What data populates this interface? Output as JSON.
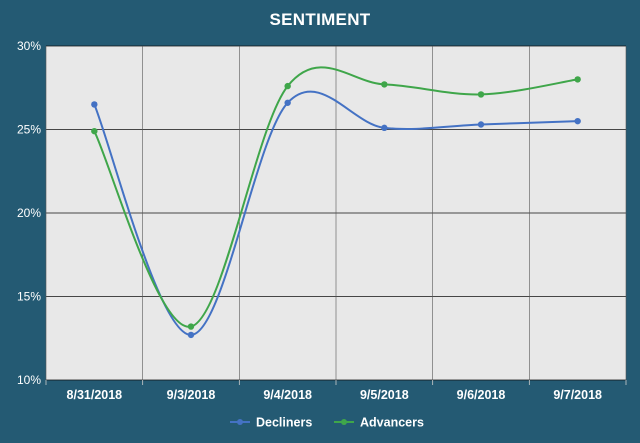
{
  "colors": {
    "background": "#245a73",
    "plot_area": "#e8e8e8",
    "decliners": "#4472c4",
    "advancers": "#3fa64a",
    "grid": "#111111"
  },
  "chart_data": {
    "type": "line",
    "title": "SENTIMENT",
    "categories": [
      "8/31/2018",
      "9/3/2018",
      "9/4/2018",
      "9/5/2018",
      "9/6/2018",
      "9/7/2018"
    ],
    "series": [
      {
        "name": "Decliners",
        "values": [
          26.5,
          12.7,
          26.6,
          25.1,
          25.3,
          25.5
        ]
      },
      {
        "name": "Advancers",
        "values": [
          24.9,
          13.2,
          27.6,
          27.7,
          27.1,
          28.0
        ]
      }
    ],
    "ylim": [
      10,
      30
    ],
    "yticks": [
      "10%",
      "15%",
      "20%",
      "25%",
      "30%"
    ],
    "ytick_values": [
      10,
      15,
      20,
      25,
      30
    ],
    "smooth": true,
    "grid": true,
    "legend": "bottom-center"
  }
}
